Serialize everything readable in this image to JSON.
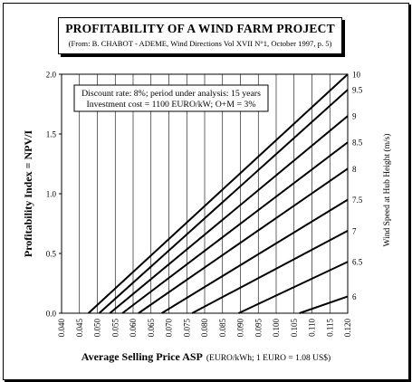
{
  "header": {
    "title": "PROFITABILITY OF A WIND FARM PROJECT",
    "subtitle": "(From: B. CHABOT - ADEME, Wind Directions Vol XVII N°1, October 1997, p. 5)"
  },
  "annotation": {
    "line1": "Discount rate: 8%; period under analysis: 15 years",
    "line2": "Investment cost = 1100 EURO/kW; O+M = 3%"
  },
  "chart_data": {
    "type": "line",
    "xlabel": "Average Selling Price ASP",
    "xlabel_unit": "(EURO/kWh; 1 EURO = 1.08 US$)",
    "ylabel": "Profitability Index = NPV/I",
    "y2label": "Wind Speed at Hub Height (m/s)",
    "xlim": [
      0.04,
      0.12
    ],
    "ylim": [
      0,
      2
    ],
    "x_ticks": [
      "0.040",
      "0.045",
      "0.050",
      "0.055",
      "0.060",
      "0.065",
      "0.070",
      "0.075",
      "0.080",
      "0.085",
      "0.090",
      "0.095",
      "0.100",
      "0.105",
      "0.110",
      "0.115",
      "0.120"
    ],
    "y_ticks": [
      "0.0",
      "0.5",
      "1.0",
      "1.5",
      "2.0"
    ],
    "grid": "vertical",
    "series": [
      {
        "name": "10",
        "x": [
          0.0475,
          0.12
        ],
        "y": [
          0,
          2.0
        ]
      },
      {
        "name": "9.5",
        "x": [
          0.0505,
          0.12
        ],
        "y": [
          0,
          1.87
        ]
      },
      {
        "name": "9",
        "x": [
          0.0535,
          0.12
        ],
        "y": [
          0,
          1.65
        ]
      },
      {
        "name": "8.5",
        "x": [
          0.057,
          0.12
        ],
        "y": [
          0,
          1.43
        ]
      },
      {
        "name": "8",
        "x": [
          0.0615,
          0.12
        ],
        "y": [
          0,
          1.21
        ]
      },
      {
        "name": "7.5",
        "x": [
          0.068,
          0.12
        ],
        "y": [
          0,
          0.95
        ]
      },
      {
        "name": "7",
        "x": [
          0.0765,
          0.12
        ],
        "y": [
          0,
          0.69
        ]
      },
      {
        "name": "6.5",
        "x": [
          0.0895,
          0.12
        ],
        "y": [
          0,
          0.43
        ]
      },
      {
        "name": "6",
        "x": [
          0.1065,
          0.12
        ],
        "y": [
          0,
          0.14
        ]
      }
    ]
  }
}
